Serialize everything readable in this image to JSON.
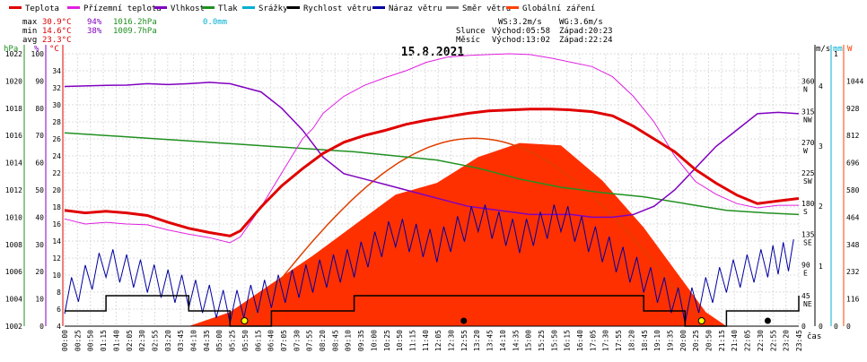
{
  "title": "15.8.2021",
  "legend": [
    {
      "label": "Teplota",
      "color": "#e00000"
    },
    {
      "label": "Přízemní teplota",
      "color": "#e020e0"
    },
    {
      "label": "Vlhkost",
      "color": "#8000c0"
    },
    {
      "label": "Tlak",
      "color": "#209020"
    },
    {
      "label": "Srážky",
      "color": "#00b0d0"
    },
    {
      "label": "Rychlost větru",
      "color": "#000000"
    },
    {
      "label": "Náraz větru",
      "color": "#0000a0"
    },
    {
      "label": "Směr větru",
      "color": "#808080"
    },
    {
      "label": "Globální záření",
      "color": "#ff4000"
    }
  ],
  "stats": {
    "max_label": "max",
    "max_temp": "30.9°C",
    "max_hum": "94%",
    "max_press": "1016.2hPa",
    "max_rain": "0.0mm",
    "min_label": "min",
    "min_temp": "14.6°C",
    "min_hum": "38%",
    "min_press": "1009.7hPa",
    "avg_label": "avg",
    "avg_temp": "23.3°C"
  },
  "astro": {
    "ws": "WS:3.2m/s",
    "wg": "WG:3.6m/s",
    "sun_label": "Slunce",
    "sun_rise": "Východ:05:58",
    "sun_set": "Západ:20:23",
    "moon_label": "Měsíc",
    "moon_rise": "Východ:13:02",
    "moon_set": "Západ:22:24"
  },
  "axis_units": {
    "hpa": "hPa",
    "pct": "%",
    "degc": "°C",
    "ms": "m/s",
    "mm": "mm",
    "w": "W",
    "time": "čas"
  },
  "axes": {
    "hpa": {
      "min": 1002,
      "max": 1022,
      "ticks": [
        1002,
        1004,
        1006,
        1008,
        1010,
        1012,
        1014,
        1016,
        1018,
        1020,
        1022
      ]
    },
    "pct": {
      "min": 0,
      "max": 100,
      "ticks": [
        0,
        10,
        20,
        30,
        40,
        50,
        60,
        70,
        80,
        90,
        100
      ]
    },
    "degc": {
      "min": 4,
      "max": 36,
      "ticks": [
        4,
        6,
        8,
        10,
        12,
        14,
        16,
        18,
        20,
        22,
        24,
        26,
        28,
        30,
        32,
        34
      ]
    },
    "ms": {
      "min": 0,
      "max": 5,
      "ticks": [
        0,
        1,
        2,
        3,
        4
      ]
    },
    "mm": {
      "ticks": [
        0,
        1
      ]
    },
    "w": {
      "min": 0,
      "max": 1160,
      "ticks": [
        0,
        116,
        232,
        348,
        464,
        580,
        696,
        812,
        928,
        1044
      ]
    },
    "dir": {
      "min": 0,
      "max": 400,
      "ticks": [
        {
          "v": 360,
          "l": "360",
          "d": "N"
        },
        {
          "v": 315,
          "l": "315",
          "d": "NW"
        },
        {
          "v": 270,
          "l": "270",
          "d": "W"
        },
        {
          "v": 225,
          "l": "225",
          "d": "SW"
        },
        {
          "v": 180,
          "l": "180",
          "d": "S"
        },
        {
          "v": 135,
          "l": "135",
          "d": "SE"
        },
        {
          "v": 90,
          "l": "90",
          "d": "E"
        },
        {
          "v": 45,
          "l": "45",
          "d": "NE"
        },
        {
          "v": 0,
          "l": "0",
          "d": ""
        }
      ]
    }
  },
  "chart_data": {
    "type": "line",
    "title": "15.8.2021",
    "x_times": [
      "00:00",
      "00:25",
      "00:50",
      "01:15",
      "01:40",
      "02:05",
      "02:30",
      "02:55",
      "03:20",
      "03:45",
      "04:10",
      "04:35",
      "05:00",
      "05:25",
      "05:50",
      "06:15",
      "06:40",
      "07:05",
      "07:30",
      "07:55",
      "08:20",
      "08:45",
      "09:10",
      "09:35",
      "10:00",
      "10:25",
      "10:50",
      "11:15",
      "11:40",
      "12:05",
      "12:30",
      "12:55",
      "13:20",
      "13:45",
      "14:10",
      "14:35",
      "15:00",
      "15:25",
      "15:50",
      "16:15",
      "16:40",
      "17:05",
      "17:30",
      "17:55",
      "18:20",
      "18:45",
      "19:10",
      "19:35",
      "20:00",
      "20:25",
      "20:50",
      "21:15",
      "21:40",
      "22:05",
      "22:30",
      "22:55",
      "23:20",
      "23:45"
    ],
    "series": [
      {
        "name": "Teplota",
        "unit": "°C",
        "values": [
          [
            0,
            17.6
          ],
          [
            1,
            17.3
          ],
          [
            2,
            17.5
          ],
          [
            3,
            17.3
          ],
          [
            4,
            17.0
          ],
          [
            5,
            16.2
          ],
          [
            6,
            15.5
          ],
          [
            7,
            15.0
          ],
          [
            8,
            14.6
          ],
          [
            8.5,
            15.2
          ],
          [
            9.5,
            18
          ],
          [
            10.5,
            20.5
          ],
          [
            11.5,
            22.5
          ],
          [
            12.5,
            24.3
          ],
          [
            13.5,
            25.6
          ],
          [
            14.5,
            26.4
          ],
          [
            15.5,
            27
          ],
          [
            16.5,
            27.7
          ],
          [
            17.5,
            28.2
          ],
          [
            18.5,
            28.6
          ],
          [
            19.5,
            29.0
          ],
          [
            20.5,
            29.3
          ],
          [
            21.5,
            29.4
          ],
          [
            22.5,
            29.5
          ],
          [
            23.5,
            29.5
          ],
          [
            24.5,
            29.4
          ],
          [
            25.5,
            29.2
          ],
          [
            26.5,
            28.7
          ],
          [
            27.5,
            27.5
          ],
          [
            28.5,
            26
          ],
          [
            29.5,
            24.5
          ],
          [
            30.5,
            22.4
          ],
          [
            31.5,
            20.8
          ],
          [
            32.5,
            19.4
          ],
          [
            33.5,
            18.4
          ],
          [
            34.5,
            18.7
          ],
          [
            35.5,
            19
          ]
        ]
      },
      {
        "name": "Přízemní teplota",
        "unit": "°C",
        "values": [
          [
            0,
            16.6
          ],
          [
            1,
            16.0
          ],
          [
            2,
            16.2
          ],
          [
            3,
            16.0
          ],
          [
            4,
            15.9
          ],
          [
            5,
            15.3
          ],
          [
            6,
            14.8
          ],
          [
            7,
            14.4
          ],
          [
            8,
            13.8
          ],
          [
            8.5,
            14.5
          ],
          [
            9.5,
            18
          ],
          [
            10.5,
            22
          ],
          [
            11.5,
            26
          ],
          [
            12,
            27.2
          ],
          [
            12.5,
            29
          ],
          [
            13.5,
            31
          ],
          [
            14.5,
            32.3
          ],
          [
            15.5,
            33.2
          ],
          [
            16.5,
            34
          ],
          [
            17.5,
            35
          ],
          [
            18.5,
            35.6
          ],
          [
            19.5,
            35.8
          ],
          [
            20.5,
            35.9
          ],
          [
            21.5,
            36
          ],
          [
            22.5,
            35.9
          ],
          [
            23.5,
            35.5
          ],
          [
            24.5,
            35
          ],
          [
            25.5,
            34.5
          ],
          [
            26.5,
            33.3
          ],
          [
            27.5,
            31
          ],
          [
            28.5,
            28
          ],
          [
            29.5,
            24
          ],
          [
            30.5,
            21
          ],
          [
            31.5,
            19.5
          ],
          [
            32.5,
            18.4
          ],
          [
            33.5,
            17.9
          ],
          [
            34.5,
            18.2
          ],
          [
            35.5,
            18.2
          ]
        ]
      },
      {
        "name": "Vlhkost",
        "unit": "%",
        "values": [
          [
            0,
            88
          ],
          [
            1,
            88.2
          ],
          [
            2,
            88.4
          ],
          [
            3,
            88.5
          ],
          [
            4,
            89
          ],
          [
            5,
            88.7
          ],
          [
            6,
            89
          ],
          [
            7,
            89.5
          ],
          [
            8,
            89
          ],
          [
            9.5,
            86
          ],
          [
            10.5,
            80
          ],
          [
            11.5,
            72
          ],
          [
            12.5,
            62
          ],
          [
            13.5,
            56
          ],
          [
            14.5,
            54
          ],
          [
            15.5,
            52
          ],
          [
            16.5,
            50
          ],
          [
            17.5,
            48
          ],
          [
            18.5,
            46
          ],
          [
            19.5,
            44
          ],
          [
            20.5,
            43
          ],
          [
            21.5,
            42
          ],
          [
            22.5,
            41
          ],
          [
            23.5,
            41
          ],
          [
            24.5,
            41
          ],
          [
            25.5,
            40
          ],
          [
            26.5,
            40
          ],
          [
            27.5,
            41
          ],
          [
            28.5,
            44
          ],
          [
            29.5,
            50
          ],
          [
            30.5,
            58
          ],
          [
            31.5,
            66
          ],
          [
            32.5,
            72
          ],
          [
            33.5,
            78
          ],
          [
            34.5,
            78.5
          ],
          [
            35.5,
            78
          ]
        ]
      },
      {
        "name": "Tlak",
        "unit": "hPa",
        "values": [
          [
            0,
            1016.2
          ],
          [
            2,
            1016.0
          ],
          [
            4,
            1015.8
          ],
          [
            6,
            1015.6
          ],
          [
            8,
            1015.4
          ],
          [
            10,
            1015.2
          ],
          [
            12,
            1015.0
          ],
          [
            14,
            1014.8
          ],
          [
            16,
            1014.5
          ],
          [
            18,
            1014.2
          ],
          [
            20,
            1013.6
          ],
          [
            22,
            1012.8
          ],
          [
            24,
            1012.2
          ],
          [
            26,
            1011.8
          ],
          [
            28,
            1011.5
          ],
          [
            30,
            1011
          ],
          [
            32,
            1010.5
          ],
          [
            34,
            1010.3
          ],
          [
            35.5,
            1010.2
          ]
        ]
      },
      {
        "name": "Rychlost větru",
        "unit": "m/s",
        "values": [
          [
            0,
            0.5
          ],
          [
            2,
            1
          ],
          [
            4,
            1
          ],
          [
            6,
            0.5
          ],
          [
            8,
            0
          ],
          [
            10,
            0.5
          ],
          [
            12,
            0.5
          ],
          [
            14,
            1
          ],
          [
            16,
            1
          ],
          [
            18,
            1
          ],
          [
            20,
            1
          ],
          [
            22,
            1
          ],
          [
            24,
            1
          ],
          [
            26,
            1
          ],
          [
            28,
            0.5
          ],
          [
            30,
            0
          ],
          [
            32,
            0.5
          ],
          [
            34,
            0.5
          ],
          [
            35.5,
            1
          ]
        ]
      },
      {
        "name": "Náraz větru",
        "unit": "m/s",
        "values": [
          [
            0,
            0.8
          ],
          [
            2,
            2
          ],
          [
            4,
            1.5
          ],
          [
            6,
            1
          ],
          [
            8,
            0.5
          ],
          [
            10,
            1
          ],
          [
            12,
            1.5
          ],
          [
            14,
            2
          ],
          [
            16,
            3
          ],
          [
            18,
            2.5
          ],
          [
            20,
            3.5
          ],
          [
            22,
            2.8
          ],
          [
            24,
            3.5
          ],
          [
            26,
            2.5
          ],
          [
            28,
            1.5
          ],
          [
            30,
            0.5
          ],
          [
            32,
            1.5
          ],
          [
            34,
            2
          ],
          [
            35.5,
            2.3
          ]
        ]
      },
      {
        "name": "Globální záření",
        "unit": "W",
        "values": [
          [
            6,
            0
          ],
          [
            8,
            60
          ],
          [
            10,
            180
          ],
          [
            12,
            300
          ],
          [
            14,
            430
          ],
          [
            16,
            560
          ],
          [
            18,
            610
          ],
          [
            20,
            720
          ],
          [
            22,
            780
          ],
          [
            24,
            770
          ],
          [
            26,
            620
          ],
          [
            28,
            420
          ],
          [
            30,
            180
          ],
          [
            31,
            60
          ],
          [
            32,
            0
          ]
        ]
      }
    ],
    "x_tick_labels": [
      "00:00",
      "00:25",
      "00:50",
      "01:15",
      "01:40",
      "02:05",
      "02:30",
      "02:55",
      "03:20",
      "03:45",
      "04:10",
      "04:35",
      "05:00",
      "05:25",
      "05:50",
      "06:15",
      "06:40",
      "07:05",
      "07:30",
      "07:55",
      "08:20",
      "08:45",
      "09:10",
      "09:35",
      "10:00",
      "10:25",
      "10:50",
      "11:15",
      "11:40",
      "12:05",
      "12:30",
      "12:55",
      "13:20",
      "13:45",
      "14:10",
      "14:35",
      "15:00",
      "15:25",
      "15:50",
      "16:15",
      "16:40",
      "17:05",
      "17:30",
      "17:55",
      "18:20",
      "18:45",
      "19:10",
      "19:35",
      "20:00",
      "20:25",
      "20:50",
      "21:15",
      "21:40",
      "22:05",
      "22:30",
      "22:55",
      "23:20",
      "23:45"
    ]
  }
}
